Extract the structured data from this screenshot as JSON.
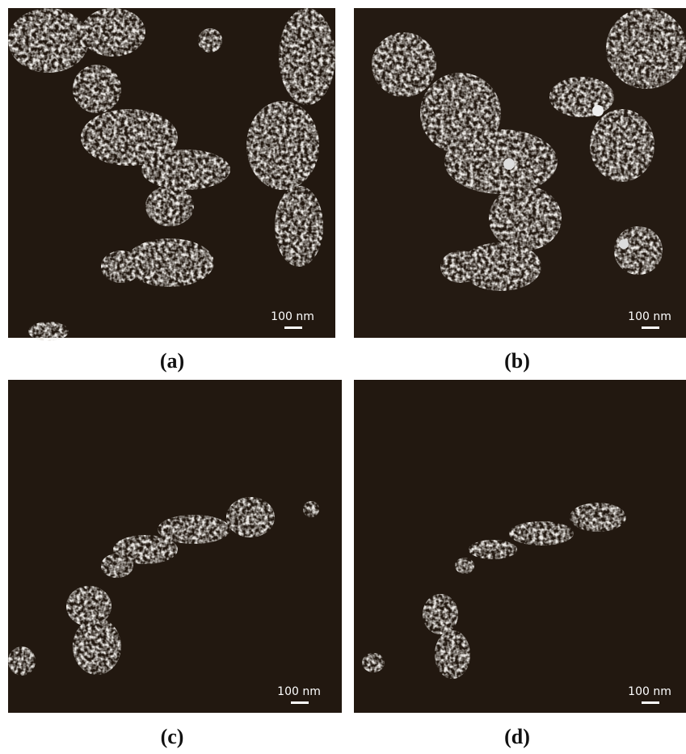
{
  "panels": [
    {
      "label": "(a)",
      "scale_bar": "100 nm"
    },
    {
      "label": "(b)",
      "scale_bar": "100 nm"
    },
    {
      "label": "(c)",
      "scale_bar": "100 nm"
    },
    {
      "label": "(d)",
      "scale_bar": "100 nm"
    }
  ]
}
